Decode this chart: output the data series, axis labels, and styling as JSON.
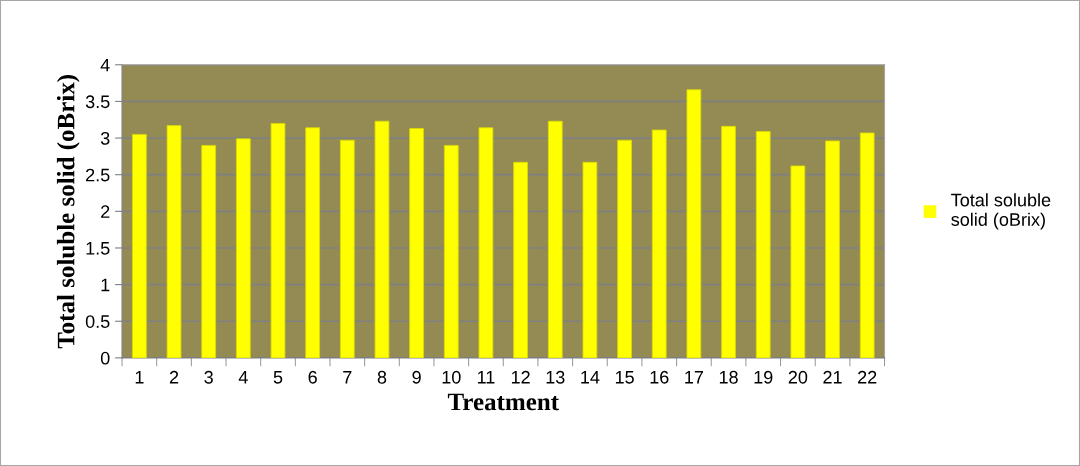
{
  "chart_data": {
    "type": "bar",
    "xlabel": "Treatment",
    "ylabel": "Total soluble solid (oBrix)",
    "categories": [
      "1",
      "2",
      "3",
      "4",
      "5",
      "6",
      "7",
      "8",
      "9",
      "10",
      "11",
      "12",
      "13",
      "14",
      "15",
      "16",
      "17",
      "18",
      "19",
      "20",
      "21",
      "22"
    ],
    "series": [
      {
        "name": "Total soluble solid (oBrix)",
        "color": "#ffff00",
        "values": [
          3.05,
          3.17,
          2.9,
          2.99,
          3.2,
          3.14,
          2.97,
          3.23,
          3.13,
          2.9,
          3.14,
          2.67,
          3.23,
          2.67,
          2.97,
          3.11,
          3.66,
          3.16,
          3.09,
          2.62,
          2.96,
          3.07
        ]
      }
    ],
    "ylim": [
      0,
      4
    ],
    "yticks": [
      0,
      0.5,
      1,
      1.5,
      2,
      2.5,
      3,
      3.5,
      4
    ],
    "grid": "y",
    "legend": "right"
  }
}
